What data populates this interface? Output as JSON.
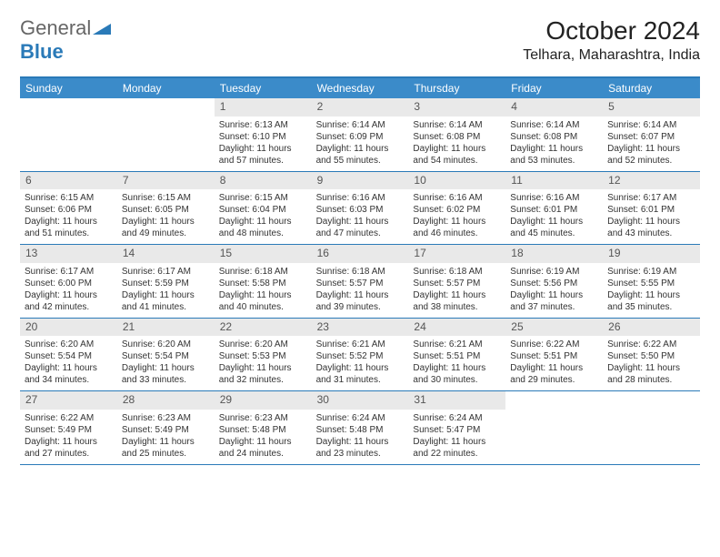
{
  "logo": {
    "text1": "General",
    "text2": "Blue"
  },
  "title": "October 2024",
  "location": "Telhara, Maharashtra, India",
  "colors": {
    "header_bg": "#3b8bc9",
    "border": "#2a7ab8",
    "daynum_bg": "#e9e9e9",
    "text": "#222222"
  },
  "weekdays": [
    "Sunday",
    "Monday",
    "Tuesday",
    "Wednesday",
    "Thursday",
    "Friday",
    "Saturday"
  ],
  "weeks": [
    [
      {
        "n": "",
        "sr": "",
        "ss": "",
        "dl": ""
      },
      {
        "n": "",
        "sr": "",
        "ss": "",
        "dl": ""
      },
      {
        "n": "1",
        "sr": "Sunrise: 6:13 AM",
        "ss": "Sunset: 6:10 PM",
        "dl": "Daylight: 11 hours and 57 minutes."
      },
      {
        "n": "2",
        "sr": "Sunrise: 6:14 AM",
        "ss": "Sunset: 6:09 PM",
        "dl": "Daylight: 11 hours and 55 minutes."
      },
      {
        "n": "3",
        "sr": "Sunrise: 6:14 AM",
        "ss": "Sunset: 6:08 PM",
        "dl": "Daylight: 11 hours and 54 minutes."
      },
      {
        "n": "4",
        "sr": "Sunrise: 6:14 AM",
        "ss": "Sunset: 6:08 PM",
        "dl": "Daylight: 11 hours and 53 minutes."
      },
      {
        "n": "5",
        "sr": "Sunrise: 6:14 AM",
        "ss": "Sunset: 6:07 PM",
        "dl": "Daylight: 11 hours and 52 minutes."
      }
    ],
    [
      {
        "n": "6",
        "sr": "Sunrise: 6:15 AM",
        "ss": "Sunset: 6:06 PM",
        "dl": "Daylight: 11 hours and 51 minutes."
      },
      {
        "n": "7",
        "sr": "Sunrise: 6:15 AM",
        "ss": "Sunset: 6:05 PM",
        "dl": "Daylight: 11 hours and 49 minutes."
      },
      {
        "n": "8",
        "sr": "Sunrise: 6:15 AM",
        "ss": "Sunset: 6:04 PM",
        "dl": "Daylight: 11 hours and 48 minutes."
      },
      {
        "n": "9",
        "sr": "Sunrise: 6:16 AM",
        "ss": "Sunset: 6:03 PM",
        "dl": "Daylight: 11 hours and 47 minutes."
      },
      {
        "n": "10",
        "sr": "Sunrise: 6:16 AM",
        "ss": "Sunset: 6:02 PM",
        "dl": "Daylight: 11 hours and 46 minutes."
      },
      {
        "n": "11",
        "sr": "Sunrise: 6:16 AM",
        "ss": "Sunset: 6:01 PM",
        "dl": "Daylight: 11 hours and 45 minutes."
      },
      {
        "n": "12",
        "sr": "Sunrise: 6:17 AM",
        "ss": "Sunset: 6:01 PM",
        "dl": "Daylight: 11 hours and 43 minutes."
      }
    ],
    [
      {
        "n": "13",
        "sr": "Sunrise: 6:17 AM",
        "ss": "Sunset: 6:00 PM",
        "dl": "Daylight: 11 hours and 42 minutes."
      },
      {
        "n": "14",
        "sr": "Sunrise: 6:17 AM",
        "ss": "Sunset: 5:59 PM",
        "dl": "Daylight: 11 hours and 41 minutes."
      },
      {
        "n": "15",
        "sr": "Sunrise: 6:18 AM",
        "ss": "Sunset: 5:58 PM",
        "dl": "Daylight: 11 hours and 40 minutes."
      },
      {
        "n": "16",
        "sr": "Sunrise: 6:18 AM",
        "ss": "Sunset: 5:57 PM",
        "dl": "Daylight: 11 hours and 39 minutes."
      },
      {
        "n": "17",
        "sr": "Sunrise: 6:18 AM",
        "ss": "Sunset: 5:57 PM",
        "dl": "Daylight: 11 hours and 38 minutes."
      },
      {
        "n": "18",
        "sr": "Sunrise: 6:19 AM",
        "ss": "Sunset: 5:56 PM",
        "dl": "Daylight: 11 hours and 37 minutes."
      },
      {
        "n": "19",
        "sr": "Sunrise: 6:19 AM",
        "ss": "Sunset: 5:55 PM",
        "dl": "Daylight: 11 hours and 35 minutes."
      }
    ],
    [
      {
        "n": "20",
        "sr": "Sunrise: 6:20 AM",
        "ss": "Sunset: 5:54 PM",
        "dl": "Daylight: 11 hours and 34 minutes."
      },
      {
        "n": "21",
        "sr": "Sunrise: 6:20 AM",
        "ss": "Sunset: 5:54 PM",
        "dl": "Daylight: 11 hours and 33 minutes."
      },
      {
        "n": "22",
        "sr": "Sunrise: 6:20 AM",
        "ss": "Sunset: 5:53 PM",
        "dl": "Daylight: 11 hours and 32 minutes."
      },
      {
        "n": "23",
        "sr": "Sunrise: 6:21 AM",
        "ss": "Sunset: 5:52 PM",
        "dl": "Daylight: 11 hours and 31 minutes."
      },
      {
        "n": "24",
        "sr": "Sunrise: 6:21 AM",
        "ss": "Sunset: 5:51 PM",
        "dl": "Daylight: 11 hours and 30 minutes."
      },
      {
        "n": "25",
        "sr": "Sunrise: 6:22 AM",
        "ss": "Sunset: 5:51 PM",
        "dl": "Daylight: 11 hours and 29 minutes."
      },
      {
        "n": "26",
        "sr": "Sunrise: 6:22 AM",
        "ss": "Sunset: 5:50 PM",
        "dl": "Daylight: 11 hours and 28 minutes."
      }
    ],
    [
      {
        "n": "27",
        "sr": "Sunrise: 6:22 AM",
        "ss": "Sunset: 5:49 PM",
        "dl": "Daylight: 11 hours and 27 minutes."
      },
      {
        "n": "28",
        "sr": "Sunrise: 6:23 AM",
        "ss": "Sunset: 5:49 PM",
        "dl": "Daylight: 11 hours and 25 minutes."
      },
      {
        "n": "29",
        "sr": "Sunrise: 6:23 AM",
        "ss": "Sunset: 5:48 PM",
        "dl": "Daylight: 11 hours and 24 minutes."
      },
      {
        "n": "30",
        "sr": "Sunrise: 6:24 AM",
        "ss": "Sunset: 5:48 PM",
        "dl": "Daylight: 11 hours and 23 minutes."
      },
      {
        "n": "31",
        "sr": "Sunrise: 6:24 AM",
        "ss": "Sunset: 5:47 PM",
        "dl": "Daylight: 11 hours and 22 minutes."
      },
      {
        "n": "",
        "sr": "",
        "ss": "",
        "dl": ""
      },
      {
        "n": "",
        "sr": "",
        "ss": "",
        "dl": ""
      }
    ]
  ]
}
